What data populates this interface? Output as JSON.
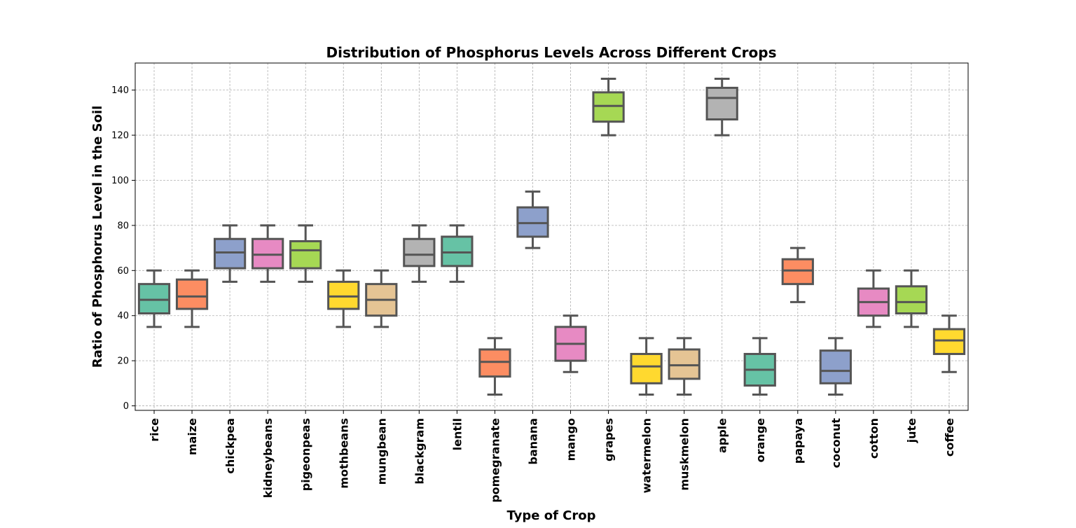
{
  "chart_data": {
    "type": "box",
    "title": "Distribution of Phosphorus Levels Across Different Crops",
    "xlabel": "Type of Crop",
    "ylabel": "Ratio of Phosphorus Level in the Soil",
    "ylim": [
      -2,
      152
    ],
    "yticks": [
      0,
      20,
      40,
      60,
      80,
      100,
      120,
      140
    ],
    "grid": true,
    "categories": [
      "rice",
      "maize",
      "chickpea",
      "kidneybeans",
      "pigeonpeas",
      "mothbeans",
      "mungbean",
      "blackgram",
      "lentil",
      "pomegranate",
      "banana",
      "mango",
      "grapes",
      "watermelon",
      "muskmelon",
      "apple",
      "orange",
      "papaya",
      "coconut",
      "cotton",
      "jute",
      "coffee"
    ],
    "boxes": [
      {
        "min": 35,
        "q1": 41,
        "median": 47,
        "q3": 54,
        "max": 60,
        "color": "#66c2a5"
      },
      {
        "min": 35,
        "q1": 43,
        "median": 48.5,
        "q3": 56,
        "max": 60,
        "color": "#fc8d62"
      },
      {
        "min": 55,
        "q1": 61,
        "median": 68,
        "q3": 74,
        "max": 80,
        "color": "#8da0cb"
      },
      {
        "min": 55,
        "q1": 61,
        "median": 67,
        "q3": 74,
        "max": 80,
        "color": "#e78ac3"
      },
      {
        "min": 55,
        "q1": 61,
        "median": 69,
        "q3": 73,
        "max": 80,
        "color": "#a6d854"
      },
      {
        "min": 35,
        "q1": 43,
        "median": 48.5,
        "q3": 55,
        "max": 60,
        "color": "#ffd92f"
      },
      {
        "min": 35,
        "q1": 40,
        "median": 47,
        "q3": 54,
        "max": 60,
        "color": "#e5c494"
      },
      {
        "min": 55,
        "q1": 62,
        "median": 67,
        "q3": 74,
        "max": 80,
        "color": "#b3b3b3"
      },
      {
        "min": 55,
        "q1": 62,
        "median": 68,
        "q3": 75,
        "max": 80,
        "color": "#66c2a5"
      },
      {
        "min": 5,
        "q1": 13,
        "median": 19.5,
        "q3": 25,
        "max": 30,
        "color": "#fc8d62"
      },
      {
        "min": 70,
        "q1": 75,
        "median": 81,
        "q3": 88,
        "max": 95,
        "color": "#8da0cb"
      },
      {
        "min": 15,
        "q1": 20,
        "median": 27.5,
        "q3": 35,
        "max": 40,
        "color": "#e78ac3"
      },
      {
        "min": 120,
        "q1": 126,
        "median": 133,
        "q3": 139,
        "max": 145,
        "color": "#a6d854"
      },
      {
        "min": 5,
        "q1": 10,
        "median": 17.5,
        "q3": 23,
        "max": 30,
        "color": "#ffd92f"
      },
      {
        "min": 5,
        "q1": 12,
        "median": 18,
        "q3": 25,
        "max": 30,
        "color": "#e5c494"
      },
      {
        "min": 120,
        "q1": 127,
        "median": 136.5,
        "q3": 141,
        "max": 145,
        "color": "#b3b3b3"
      },
      {
        "min": 5,
        "q1": 9,
        "median": 16,
        "q3": 23,
        "max": 30,
        "color": "#66c2a5"
      },
      {
        "min": 46,
        "q1": 54,
        "median": 60,
        "q3": 65,
        "max": 70,
        "color": "#fc8d62"
      },
      {
        "min": 5,
        "q1": 10,
        "median": 15.5,
        "q3": 24.5,
        "max": 30,
        "color": "#8da0cb"
      },
      {
        "min": 35,
        "q1": 40,
        "median": 46,
        "q3": 52,
        "max": 60,
        "color": "#e78ac3"
      },
      {
        "min": 35,
        "q1": 41,
        "median": 46,
        "q3": 53,
        "max": 60,
        "color": "#a6d854"
      },
      {
        "min": 15,
        "q1": 23,
        "median": 29,
        "q3": 34,
        "max": 40,
        "color": "#ffd92f"
      }
    ]
  }
}
